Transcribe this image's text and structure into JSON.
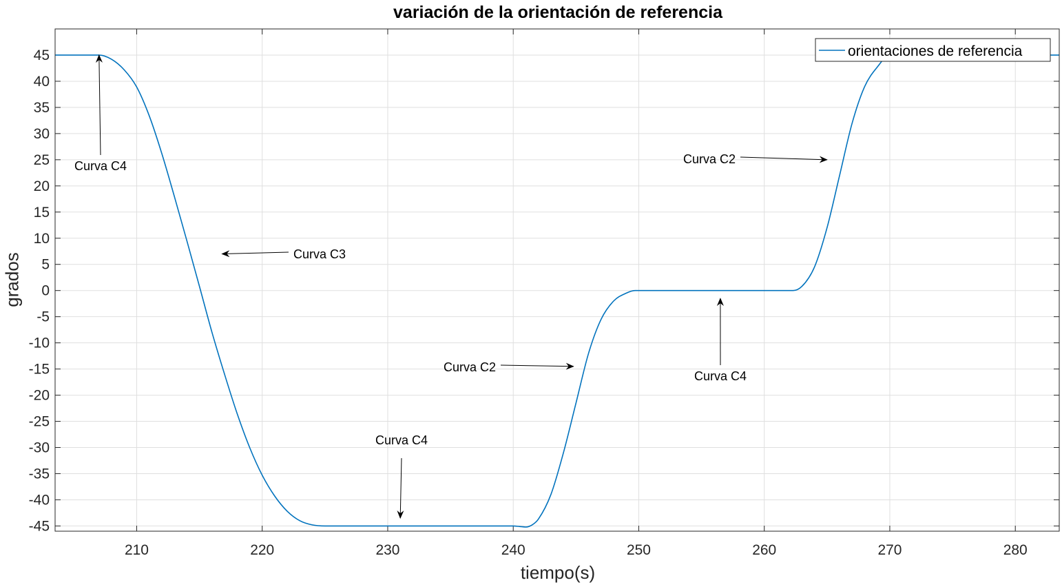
{
  "colors": {
    "series": "#0072bd",
    "grid": "#dfdfdf",
    "axis": "#262626"
  },
  "chart_data": {
    "type": "line",
    "title": "variación de la orientación de referencia",
    "xlabel": "tiempo(s)",
    "ylabel": "grados",
    "xlim": [
      203.5,
      283.5
    ],
    "ylim": [
      -46,
      50
    ],
    "xticks": [
      210,
      220,
      230,
      240,
      250,
      260,
      270,
      280
    ],
    "yticks": [
      45,
      40,
      35,
      30,
      25,
      20,
      15,
      10,
      5,
      0,
      -5,
      -10,
      -15,
      -20,
      -25,
      -30,
      -35,
      -40,
      -45
    ],
    "grid": true,
    "legend": {
      "position": "top-right",
      "entries": [
        "orientaciones de referencia"
      ]
    },
    "series": [
      {
        "name": "orientaciones de referencia",
        "x": [
          203.5,
          207.0,
          208.0,
          209.0,
          210.0,
          211.0,
          212.0,
          213.0,
          214.0,
          215.0,
          216.0,
          217.0,
          218.0,
          219.0,
          220.0,
          221.0,
          222.0,
          223.0,
          224.0,
          225.0,
          230.0,
          235.0,
          240.0,
          240.5,
          241.0,
          241.5,
          242.0,
          243.0,
          244.0,
          245.0,
          246.0,
          247.0,
          248.0,
          249.0,
          249.7,
          255.0,
          262.3,
          263.0,
          264.0,
          265.0,
          266.0,
          267.0,
          268.0,
          269.0,
          270.0,
          283.5
        ],
        "y": [
          45,
          45,
          44.2,
          42.2,
          38.9,
          33.4,
          26.2,
          18.0,
          9.5,
          0.8,
          -8.0,
          -16.0,
          -23.5,
          -30.0,
          -35.3,
          -39.3,
          -42.2,
          -44.0,
          -44.8,
          -45,
          -45,
          -45,
          -45,
          -45.1,
          -45.2,
          -44.8,
          -43.7,
          -39.0,
          -31.0,
          -21.5,
          -12.0,
          -5.5,
          -2.0,
          -0.5,
          0,
          0,
          0,
          0.8,
          4.5,
          12.0,
          22.0,
          32.0,
          39.0,
          42.7,
          45,
          45
        ]
      }
    ],
    "annotations": [
      {
        "text": "Curva C4",
        "arrow_to": [
          207.0,
          45.0
        ]
      },
      {
        "text": "Curva C3",
        "arrow_to": [
          216.8,
          7.0
        ]
      },
      {
        "text": "Curva C4",
        "arrow_to": [
          231.0,
          -43.5
        ]
      },
      {
        "text": "Curva C2",
        "arrow_to": [
          244.8,
          -14.5
        ]
      },
      {
        "text": "Curva C4",
        "arrow_to": [
          256.5,
          -1.5
        ]
      },
      {
        "text": "Curva C2",
        "arrow_to": [
          265.0,
          25.0
        ]
      }
    ]
  }
}
